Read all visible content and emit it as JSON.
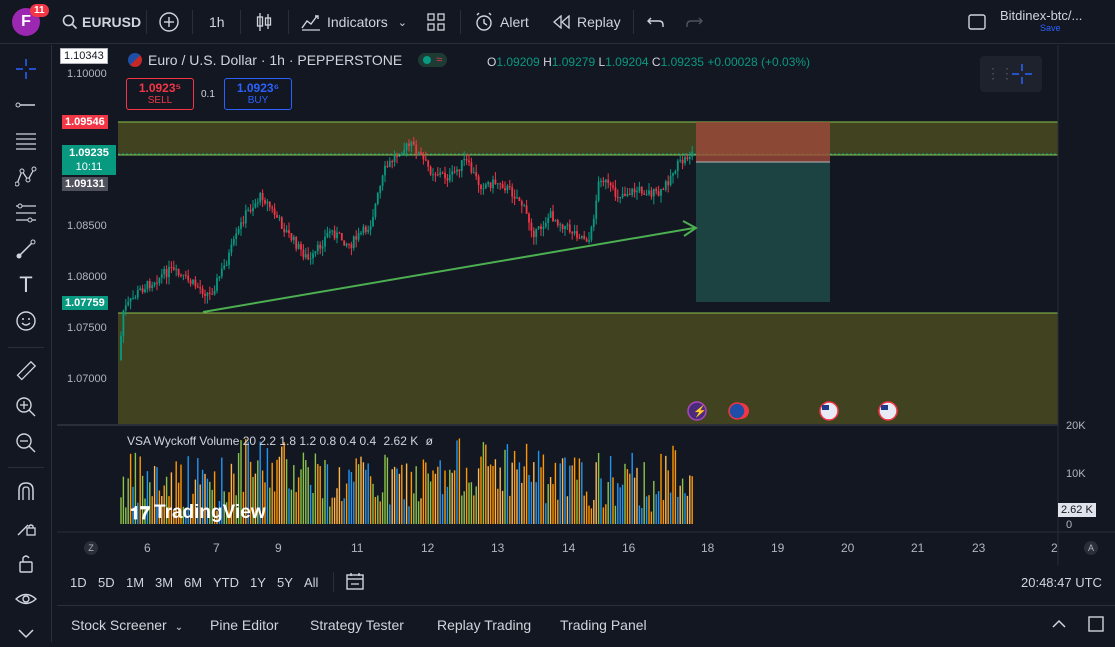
{
  "topbar": {
    "avatar_letter": "F",
    "notification_count": "11",
    "symbol": "EURUSD",
    "interval": "1h",
    "indicators_label": "Indicators",
    "alert_label": "Alert",
    "replay_label": "Replay",
    "layout_name": "Bitdinex-btc/...",
    "save_label": "Save"
  },
  "legend": {
    "title": "Euro / U.S. Dollar · 1h · PEPPERSTONE",
    "open_key": "O",
    "open": "1.09209",
    "high_key": "H",
    "high": "1.09279",
    "low_key": "L",
    "low": "1.09204",
    "close_key": "C",
    "close": "1.09235",
    "change": "+0.00028 (+0.03%)"
  },
  "trade": {
    "sell_price": "1.0923⁵",
    "sell_label": "SELL",
    "spread": "0.1",
    "buy_price": "1.0923⁶",
    "buy_label": "BUY"
  },
  "price_axis": {
    "top_value": "1.10343",
    "labels": [
      "1.10000",
      "1.08500",
      "1.08000",
      "1.07500",
      "1.07000"
    ],
    "resistance": "1.09546",
    "current": "1.09235",
    "countdown": "10:11",
    "marker": "1.09131",
    "support": "1.07759"
  },
  "volume_axis": {
    "labels": [
      "20K",
      "10K",
      "0"
    ],
    "current": "2.62 K"
  },
  "indicator": {
    "label": "VSA Wyckoff Volume 20 2.2 1.8 1.2 0.8 0.4 0.4",
    "value": "2.62 K",
    "symbol": "ø"
  },
  "watermark": "TradingView",
  "x_axis": [
    "6",
    "7",
    "9",
    "11",
    "12",
    "13",
    "14",
    "16",
    "18",
    "19",
    "20",
    "21",
    "23",
    "2"
  ],
  "timeframes": [
    "1D",
    "5D",
    "1M",
    "3M",
    "6M",
    "YTD",
    "1Y",
    "5Y",
    "All"
  ],
  "clock": "20:48:47 UTC",
  "bottom_panel": [
    "Stock Screener",
    "Pine Editor",
    "Strategy Tester",
    "Replay Trading",
    "Trading Panel"
  ],
  "axis_buttons": {
    "z": "Z",
    "a": "A"
  },
  "colors": {
    "zone": "#4a4a1e",
    "zone_line": "#8bc34a",
    "up": "#089981",
    "down": "#f23645",
    "trend": "#4caf50",
    "position_loss": "#9e4a3a",
    "position_profit": "#1e4a47"
  },
  "chart_data": {
    "type": "candlestick",
    "support_zone": [
      1.0662,
      1.0776
    ],
    "resistance_zone": [
      1.0923,
      1.0955
    ],
    "ylim": [
      1.066,
      1.1034
    ]
  }
}
